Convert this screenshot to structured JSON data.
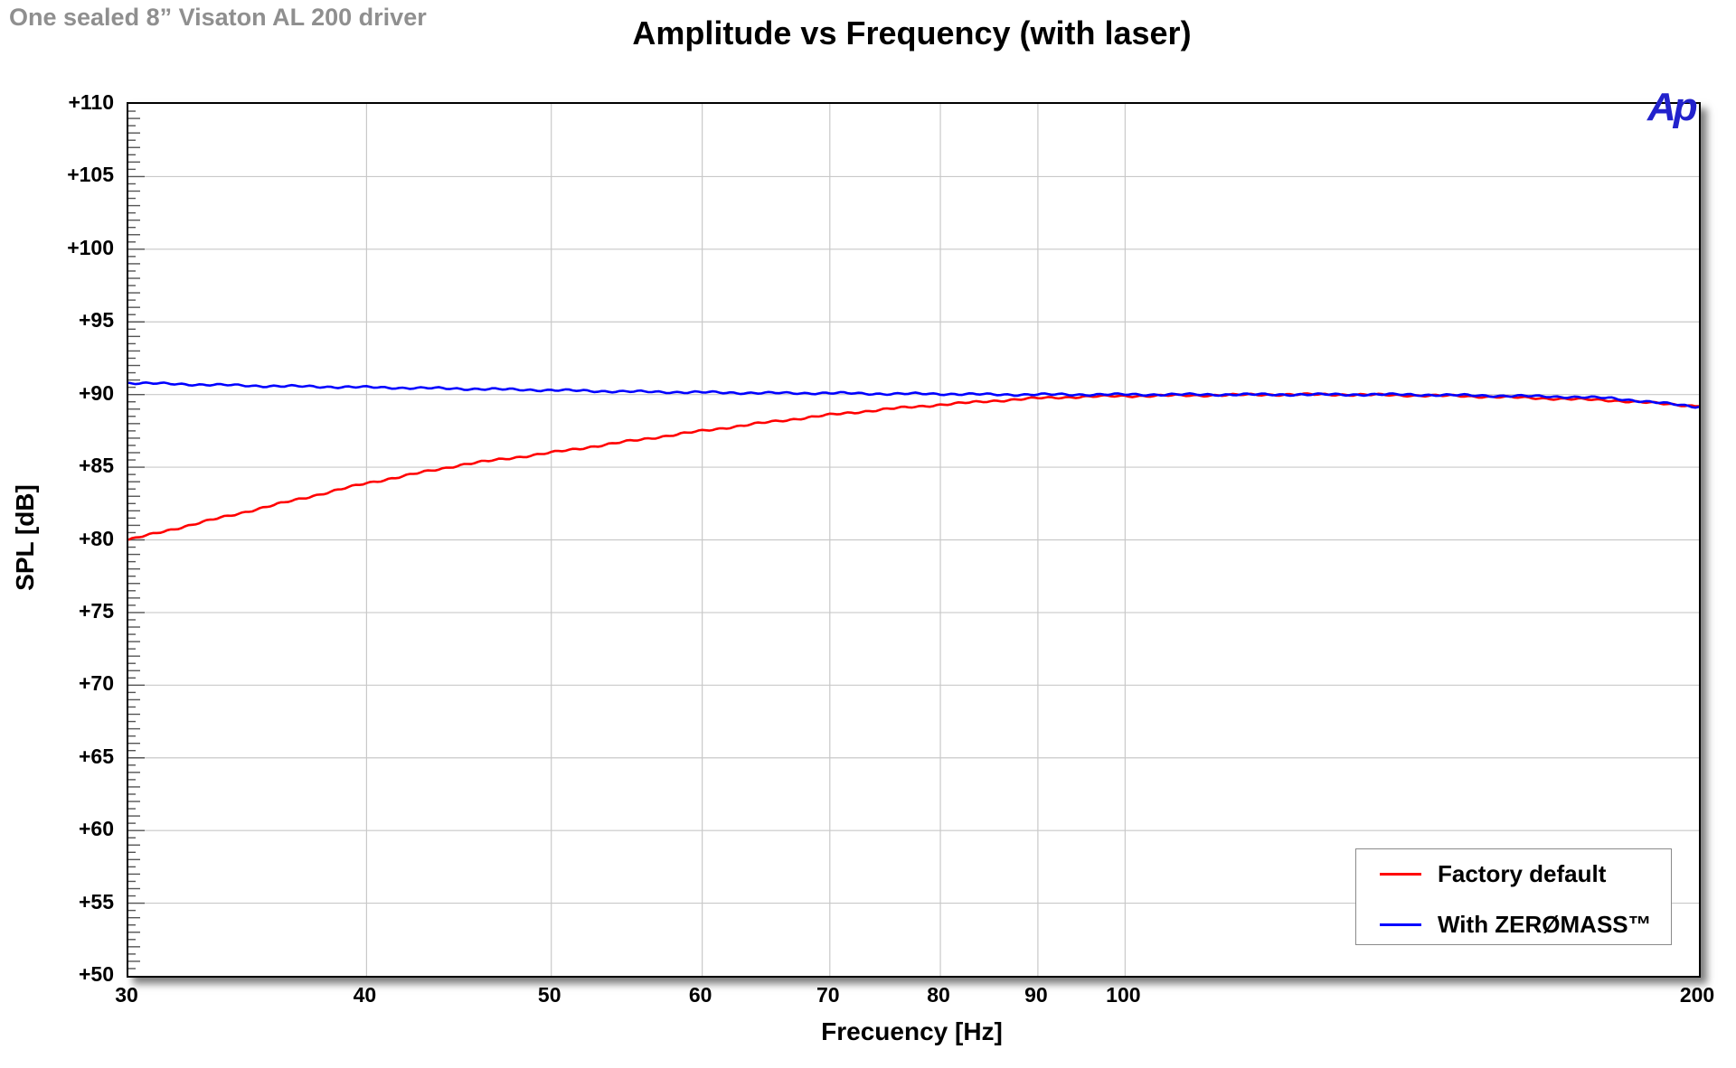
{
  "annotation": "One sealed 8” Visaton AL 200 driver",
  "logo_text": "Ap",
  "chart_data": {
    "type": "line",
    "title": "Amplitude vs Frequency (with laser)",
    "xlabel": "Frecuency [Hz]",
    "ylabel": "SPL [dB]",
    "x_scale": "log",
    "xlim": [
      30,
      200
    ],
    "ylim": [
      50,
      110
    ],
    "grid": true,
    "legend_position": "bottom-right",
    "x_tick_values": [
      30,
      40,
      50,
      60,
      70,
      80,
      90,
      100,
      200
    ],
    "x_tick_labels": [
      "30",
      "40",
      "50",
      "60",
      "70",
      "80",
      "90",
      "100",
      "200"
    ],
    "y_tick_values": [
      110,
      105,
      100,
      95,
      90,
      85,
      80,
      75,
      70,
      65,
      60,
      55,
      50
    ],
    "y_tick_labels": [
      "+110",
      "+105",
      "+100",
      "+95",
      "+90",
      "+85",
      "+80",
      "+75",
      "+70",
      "+65",
      "+60",
      "+55",
      "+50"
    ],
    "x": [
      30,
      35,
      40,
      45,
      50,
      55,
      60,
      65,
      70,
      75,
      80,
      85,
      90,
      95,
      100,
      110,
      120,
      130,
      140,
      150,
      160,
      170,
      180,
      190,
      200
    ],
    "series": [
      {
        "name": "Factory default",
        "color": "#ff0000",
        "values": [
          80.0,
          82.1,
          83.9,
          85.2,
          86.0,
          86.8,
          87.5,
          88.1,
          88.6,
          89.0,
          89.3,
          89.55,
          89.75,
          89.85,
          89.9,
          89.95,
          90.0,
          90.0,
          89.95,
          89.9,
          89.8,
          89.7,
          89.6,
          89.4,
          89.2
        ]
      },
      {
        "name": "With ZERØMASS™",
        "color": "#0000ff",
        "values": [
          90.8,
          90.6,
          90.5,
          90.4,
          90.3,
          90.2,
          90.15,
          90.1,
          90.1,
          90.05,
          90.05,
          90.0,
          90.0,
          90.0,
          90.0,
          90.0,
          90.0,
          90.0,
          90.0,
          89.95,
          89.9,
          89.85,
          89.75,
          89.45,
          89.15
        ]
      }
    ]
  },
  "legend": {
    "items": [
      {
        "label": "Factory default",
        "color": "#ff0000"
      },
      {
        "label": "With ZERØMASS™",
        "color": "#0000ff"
      }
    ]
  },
  "colors": {
    "grid": "#c9c9c9",
    "axis_border": "#000000",
    "annotation_gray": "#8f8f8f",
    "logo_blue": "#2222cc",
    "tick": "#555555"
  }
}
